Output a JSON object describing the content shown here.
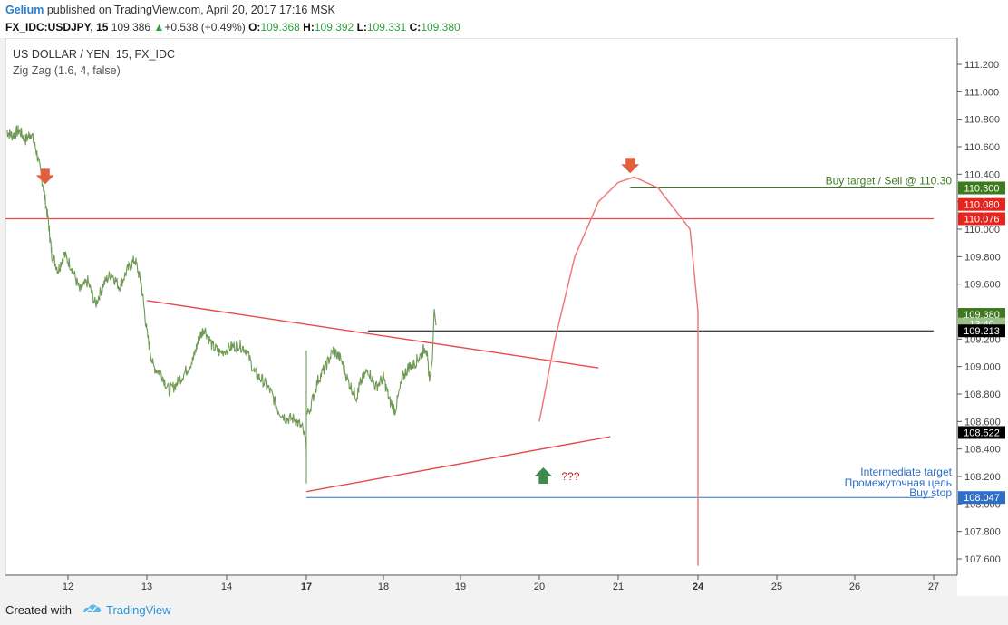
{
  "header": {
    "author": "Gelium",
    "published_text": " published on TradingView.com, April 20, 2017 17:16 MSK",
    "symbol": "FX_IDC:USDJPY, 15",
    "last_price": "109.386",
    "change_arrow": "▲",
    "change": "+0.538 (+0.49%)",
    "open_label": "O:",
    "open": "109.368",
    "high_label": "H:",
    "high": "109.392",
    "low_label": "L:",
    "low": "109.331",
    "close_label": "C:",
    "close": "109.380"
  },
  "legend": {
    "title": "US DOLLAR / YEN, 15, FX_IDC",
    "indicator": "Zig Zag (1.6, 4, false)"
  },
  "footer": {
    "created_with": "Created with",
    "brand": "TradingView"
  },
  "colors": {
    "price": "#6f9a55",
    "trend": "#e84a4a",
    "projection": "#f07a7a",
    "target": "#3d7a1e",
    "stop": "#2d6ec7",
    "down_arrow": "#e06040",
    "up_arrow": "#3e8a4d"
  },
  "chart_data": {
    "type": "line",
    "title": "US DOLLAR / YEN, 15, FX_IDC",
    "ylim": [
      107.5,
      111.25
    ],
    "y_ticks": [
      "111.200",
      "111.000",
      "110.800",
      "110.600",
      "110.400",
      "110.200",
      "110.000",
      "109.800",
      "109.600",
      "109.400",
      "109.200",
      "109.000",
      "108.800",
      "108.600",
      "108.400",
      "108.200",
      "108.000",
      "107.800",
      "107.600"
    ],
    "x_ticks": [
      {
        "label": "12",
        "day": 12
      },
      {
        "label": "13",
        "day": 13
      },
      {
        "label": "14",
        "day": 14
      },
      {
        "label": "17",
        "day": 17
      },
      {
        "label": "18",
        "day": 18
      },
      {
        "label": "19",
        "day": 19
      },
      {
        "label": "20",
        "day": 20
      },
      {
        "label": "21",
        "day": 21
      },
      {
        "label": "24",
        "day": 24
      },
      {
        "label": "25",
        "day": 25
      },
      {
        "label": "26",
        "day": 26
      },
      {
        "label": "27",
        "day": 27
      }
    ],
    "series": [
      {
        "values": [
          [
            11.25,
            110.71
          ],
          [
            11.32,
            110.68
          ],
          [
            11.4,
            110.72
          ],
          [
            11.48,
            110.65
          ],
          [
            11.55,
            110.7
          ],
          [
            11.62,
            110.55
          ],
          [
            11.7,
            110.3
          ],
          [
            11.76,
            110.05
          ],
          [
            11.8,
            109.82
          ],
          [
            11.88,
            109.7
          ],
          [
            11.95,
            109.82
          ],
          [
            12.05,
            109.72
          ],
          [
            12.15,
            109.55
          ],
          [
            12.25,
            109.62
          ],
          [
            12.35,
            109.45
          ],
          [
            12.45,
            109.6
          ],
          [
            12.55,
            109.68
          ],
          [
            12.65,
            109.58
          ],
          [
            12.75,
            109.7
          ],
          [
            12.85,
            109.78
          ],
          [
            12.93,
            109.6
          ],
          [
            13.0,
            109.25
          ],
          [
            13.08,
            109.0
          ],
          [
            13.18,
            108.95
          ],
          [
            13.28,
            108.82
          ],
          [
            13.38,
            108.88
          ],
          [
            13.48,
            108.96
          ],
          [
            13.58,
            109.05
          ],
          [
            13.65,
            109.2
          ],
          [
            13.72,
            109.28
          ],
          [
            13.82,
            109.15
          ],
          [
            13.92,
            109.1
          ],
          [
            14.05,
            109.14
          ],
          [
            14.15,
            109.16
          ],
          [
            14.25,
            109.12
          ],
          [
            14.35,
            108.95
          ],
          [
            14.45,
            108.9
          ],
          [
            14.55,
            108.82
          ],
          [
            14.65,
            108.68
          ],
          [
            14.75,
            108.62
          ],
          [
            14.85,
            108.62
          ],
          [
            14.95,
            108.55
          ],
          [
            15.05,
            108.3
          ],
          [
            15.12,
            108.18
          ],
          [
            15.2,
            108.25
          ],
          [
            15.3,
            108.28
          ],
          [
            15.4,
            108.34
          ],
          [
            15.5,
            108.4
          ],
          [
            15.58,
            108.55
          ],
          [
            15.66,
            108.75
          ],
          [
            15.75,
            109.02
          ],
          [
            15.85,
            109.08
          ],
          [
            15.95,
            109.05
          ],
          [
            16.05,
            108.95
          ],
          [
            16.12,
            108.8
          ],
          [
            16.2,
            108.7
          ],
          [
            16.3,
            108.82
          ],
          [
            16.4,
            108.72
          ],
          [
            16.48,
            108.55
          ],
          [
            16.56,
            108.4
          ],
          [
            16.65,
            108.38
          ],
          [
            16.75,
            108.45
          ],
          [
            16.85,
            108.42
          ],
          [
            16.95,
            108.58
          ],
          [
            17.05,
            108.7
          ],
          [
            17.15,
            108.9
          ],
          [
            17.25,
            109.0
          ],
          [
            17.35,
            109.12
          ],
          [
            17.45,
            109.05
          ],
          [
            17.55,
            108.88
          ],
          [
            17.65,
            108.78
          ],
          [
            17.7,
            108.88
          ],
          [
            17.8,
            108.98
          ],
          [
            17.9,
            108.85
          ],
          [
            18.0,
            108.92
          ],
          [
            18.08,
            108.75
          ],
          [
            18.15,
            108.68
          ],
          [
            18.25,
            108.92
          ],
          [
            18.33,
            109.0
          ],
          [
            18.4,
            109.02
          ],
          [
            18.48,
            109.08
          ],
          [
            18.55,
            109.15
          ],
          [
            18.6,
            108.9
          ]
        ]
      }
    ],
    "zigzag": [],
    "drawings": {
      "upper_trend": {
        "from": [
          13.0,
          109.48
        ],
        "to": [
          20.75,
          108.99
        ]
      },
      "lower_trend": {
        "from": [
          17.0,
          108.09
        ],
        "to": [
          20.9,
          108.49
        ]
      },
      "resistance_hline": {
        "from": [
          17.8,
          109.26
        ],
        "to": [
          27.0,
          109.26
        ]
      },
      "buy_target_line": {
        "from": [
          21.15,
          110.3
        ],
        "to": [
          27.0,
          110.3
        ]
      },
      "support_110": {
        "from": [
          10.0,
          110.076
        ],
        "to": [
          27.0,
          110.076
        ]
      },
      "buy_stop_line": {
        "from": [
          17.0,
          108.047
        ],
        "to": [
          27.0,
          108.047
        ]
      },
      "arc_points": [
        [
          20.0,
          108.6
        ],
        [
          20.2,
          109.2
        ],
        [
          20.45,
          109.8
        ],
        [
          20.75,
          110.2
        ],
        [
          21.0,
          110.34
        ],
        [
          21.2,
          110.38
        ],
        [
          21.5,
          110.3
        ],
        [
          21.9,
          110.0
        ],
        [
          22.4,
          109.4
        ],
        [
          22.9,
          108.6
        ],
        [
          23.4,
          107.55
        ]
      ]
    },
    "markers": [
      {
        "type": "down-arrow",
        "x": 11.72,
        "y": 110.38
      },
      {
        "type": "down-arrow",
        "x": 21.15,
        "y": 110.46
      },
      {
        "type": "up-arrow",
        "x": 20.05,
        "y": 108.2
      }
    ],
    "annotations": {
      "buy_target": "Buy target / Sell @ 110.30",
      "intermediate_en": "Intermediate target",
      "intermediate_ru": "Промежуточная цель",
      "buy_stop": "Buy stop",
      "question": "???"
    },
    "price_labels": [
      {
        "text": "110.300",
        "y": 110.3,
        "bg": "#3d7a1e",
        "fg": "#ffffff"
      },
      {
        "text": "110.080",
        "y": 110.18,
        "bg": "#e8231e",
        "fg": "#ffffff"
      },
      {
        "text": "110.076",
        "y": 110.076,
        "bg": "#e8231e",
        "fg": "#ffffff"
      },
      {
        "text": "109.380",
        "y": 109.38,
        "bg": "#3d7a1e",
        "fg": "#ffffff"
      },
      {
        "text": "13:40",
        "y": 109.31,
        "bg": "#9dbf8a",
        "fg": "#ffffff"
      },
      {
        "text": "109.213",
        "y": 109.26,
        "bg": "#000000",
        "fg": "#ffffff"
      },
      {
        "text": "108.522",
        "y": 108.52,
        "bg": "#000000",
        "fg": "#ffffff"
      },
      {
        "text": "108.047",
        "y": 108.047,
        "bg": "#2d6ec7",
        "fg": "#ffffff"
      }
    ]
  }
}
